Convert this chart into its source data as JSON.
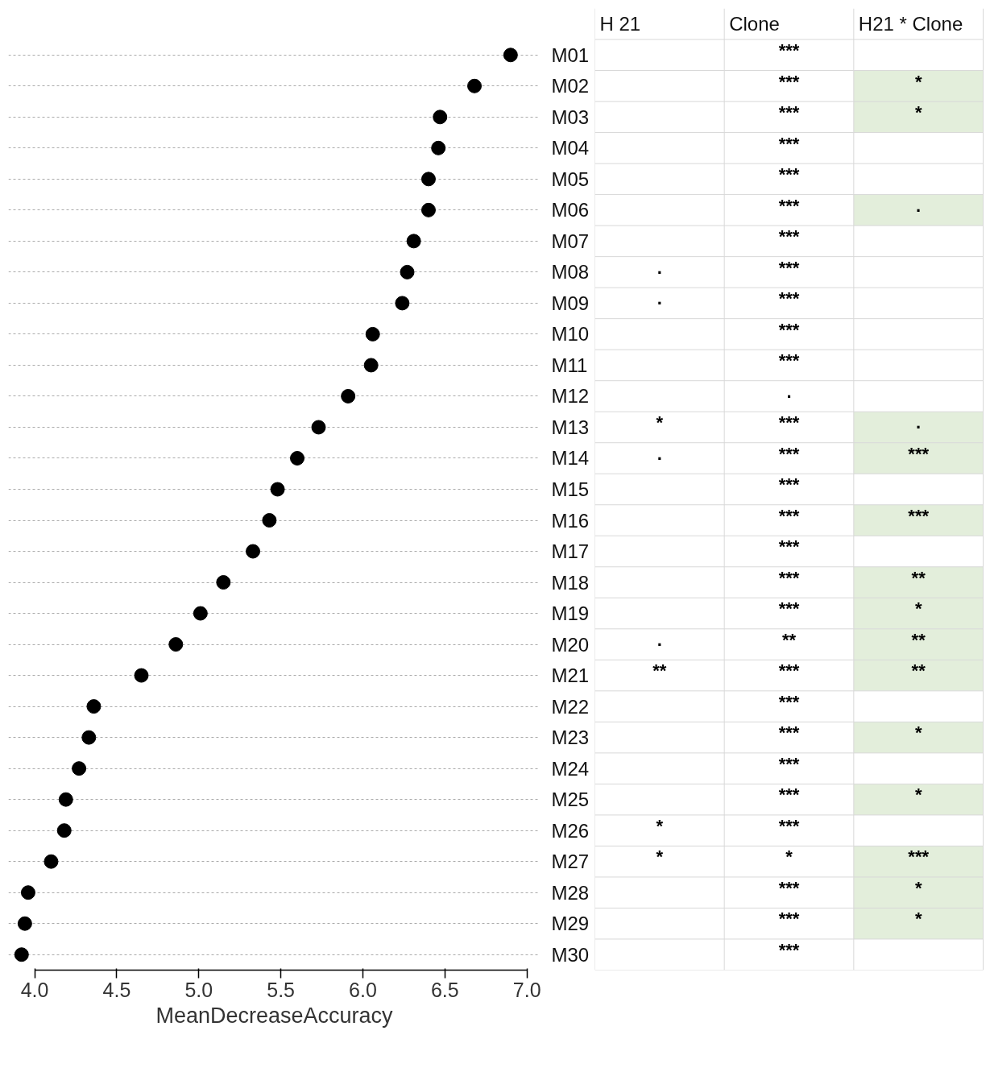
{
  "chart_data": [
    {
      "type": "scatter",
      "orientation": "horizontal",
      "categories": [
        "M01",
        "M02",
        "M03",
        "M04",
        "M05",
        "M06",
        "M07",
        "M08",
        "M09",
        "M10",
        "M11",
        "M12",
        "M13",
        "M14",
        "M15",
        "M16",
        "M17",
        "M18",
        "M19",
        "M20",
        "M21",
        "M22",
        "M23",
        "M24",
        "M25",
        "M26",
        "M27",
        "M28",
        "M29",
        "M30"
      ],
      "values": [
        6.9,
        6.68,
        6.47,
        6.46,
        6.4,
        6.4,
        6.31,
        6.27,
        6.24,
        6.06,
        6.05,
        5.91,
        5.73,
        5.6,
        5.48,
        5.43,
        5.33,
        5.15,
        5.01,
        4.86,
        4.65,
        4.36,
        4.33,
        4.27,
        4.19,
        4.18,
        4.1,
        3.96,
        3.94,
        3.92
      ],
      "color": "#000000",
      "marker": "circle",
      "xlim": [
        3.84,
        7.08
      ],
      "xticks": [
        {
          "value": 4.0,
          "label": "4.0"
        },
        {
          "value": 4.5,
          "label": "4.5"
        },
        {
          "value": 5.0,
          "label": "5.0"
        },
        {
          "value": 5.5,
          "label": "5.5"
        },
        {
          "value": 6.0,
          "label": "6.0"
        },
        {
          "value": 6.5,
          "label": "6.5"
        },
        {
          "value": 7.0,
          "label": "7.0"
        }
      ],
      "xlabel": "MeanDecreaseAccuracy",
      "grid": "y"
    },
    {
      "type": "other",
      "categories": [
        "H 21",
        "Clone",
        "H21 * Clone"
      ],
      "cell_labels": [
        [
          null,
          "***",
          null
        ],
        [
          null,
          "***",
          "*"
        ],
        [
          null,
          "***",
          "*"
        ],
        [
          null,
          "***",
          null
        ],
        [
          null,
          "***",
          null
        ],
        [
          null,
          "***",
          "."
        ],
        [
          null,
          "***",
          null
        ],
        [
          ".",
          "***",
          null
        ],
        [
          ".",
          "***",
          null
        ],
        [
          null,
          "***",
          null
        ],
        [
          null,
          "***",
          null
        ],
        [
          null,
          ".",
          null
        ],
        [
          "*",
          "***",
          "."
        ],
        [
          ".",
          "***",
          "***"
        ],
        [
          null,
          "***",
          null
        ],
        [
          null,
          "***",
          "***"
        ],
        [
          null,
          "***",
          null
        ],
        [
          null,
          "***",
          "**"
        ],
        [
          null,
          "***",
          "*"
        ],
        [
          ".",
          "**",
          "**"
        ],
        [
          "**",
          "***",
          "**"
        ],
        [
          null,
          "***",
          null
        ],
        [
          null,
          "***",
          "*"
        ],
        [
          null,
          "***",
          null
        ],
        [
          null,
          "***",
          "*"
        ],
        [
          "*",
          "***",
          null
        ],
        [
          "*",
          "*",
          "***"
        ],
        [
          null,
          "***",
          "*"
        ],
        [
          null,
          "***",
          "*"
        ],
        [
          null,
          "***",
          null
        ]
      ]
    }
  ]
}
